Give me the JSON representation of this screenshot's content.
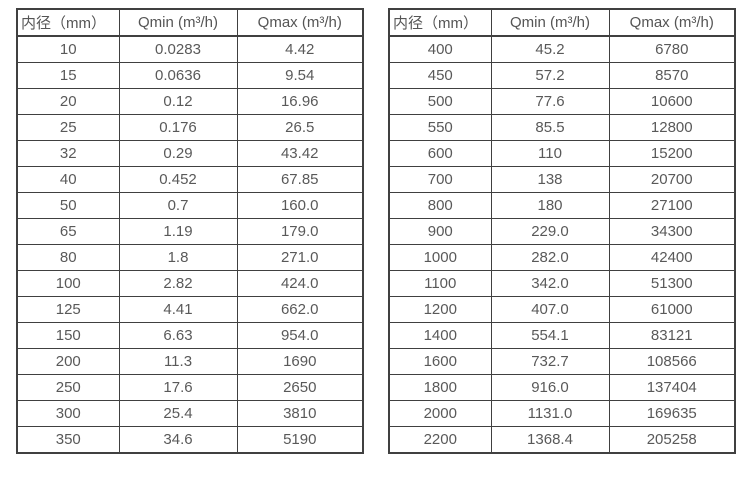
{
  "page": {
    "background_color": "#ffffff",
    "text_color": "#595959",
    "border_color": "#404040",
    "description": "Two side-by-side flow-rate specification tables listing minimum and maximum flow (Qmin/Qmax) per pipe inner diameter"
  },
  "tables": [
    {
      "name": "flow-rate-table-small-diameters",
      "headers": [
        "内径（mm）",
        "Qmin (m³/h)",
        "Qmax (m³/h)"
      ],
      "rows": [
        [
          "10",
          "0.0283",
          "4.42"
        ],
        [
          "15",
          "0.0636",
          "9.54"
        ],
        [
          "20",
          "0.12",
          "16.96"
        ],
        [
          "25",
          "0.176",
          "26.5"
        ],
        [
          "32",
          "0.29",
          "43.42"
        ],
        [
          "40",
          "0.452",
          "67.85"
        ],
        [
          "50",
          "0.7",
          "160.0"
        ],
        [
          "65",
          "1.19",
          "179.0"
        ],
        [
          "80",
          "1.8",
          "271.0"
        ],
        [
          "100",
          "2.82",
          "424.0"
        ],
        [
          "125",
          "4.41",
          "662.0"
        ],
        [
          "150",
          "6.63",
          "954.0"
        ],
        [
          "200",
          "11.3",
          "1690"
        ],
        [
          "250",
          "17.6",
          "2650"
        ],
        [
          "300",
          "25.4",
          "3810"
        ],
        [
          "350",
          "34.6",
          "5190"
        ]
      ]
    },
    {
      "name": "flow-rate-table-large-diameters",
      "headers": [
        "内径（mm）",
        "Qmin (m³/h)",
        "Qmax (m³/h)"
      ],
      "rows": [
        [
          "400",
          "45.2",
          "6780"
        ],
        [
          "450",
          "57.2",
          "8570"
        ],
        [
          "500",
          "77.6",
          "10600"
        ],
        [
          "550",
          "85.5",
          "12800"
        ],
        [
          "600",
          "110",
          "15200"
        ],
        [
          "700",
          "138",
          "20700"
        ],
        [
          "800",
          "180",
          "27100"
        ],
        [
          "900",
          "229.0",
          "34300"
        ],
        [
          "1000",
          "282.0",
          "42400"
        ],
        [
          "1100",
          "342.0",
          "51300"
        ],
        [
          "1200",
          "407.0",
          "61000"
        ],
        [
          "1400",
          "554.1",
          "83121"
        ],
        [
          "1600",
          "732.7",
          "108566"
        ],
        [
          "1800",
          "916.0",
          "137404"
        ],
        [
          "2000",
          "1131.0",
          "169635"
        ],
        [
          "2200",
          "1368.4",
          "205258"
        ]
      ]
    }
  ]
}
